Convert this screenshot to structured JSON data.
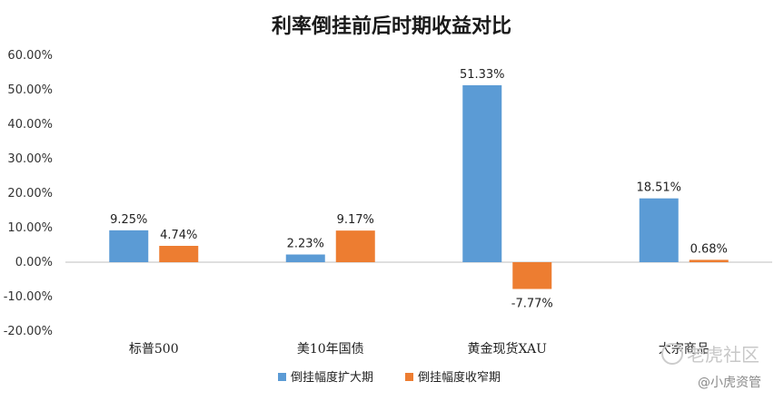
{
  "chart_data": {
    "type": "bar",
    "title": "利率倒挂前后时期收益对比",
    "categories": [
      "标普500",
      "美10年国债",
      "黄金现货XAU",
      "大宗商品"
    ],
    "series": [
      {
        "name": "倒挂幅度扩大期",
        "values": [
          9.25,
          2.23,
          51.33,
          18.51
        ],
        "labels": [
          "9.25%",
          "2.23%",
          "51.33%",
          "18.51%"
        ],
        "color": "#5B9BD5"
      },
      {
        "name": "倒挂幅度收窄期",
        "values": [
          4.74,
          9.17,
          -7.77,
          0.68
        ],
        "labels": [
          "4.74%",
          "9.17%",
          "-7.77%",
          "0.68%"
        ],
        "color": "#ED7D31"
      }
    ],
    "ylim": [
      -20,
      60
    ],
    "yticks": [
      "60.00%",
      "50.00%",
      "40.00%",
      "30.00%",
      "20.00%",
      "10.00%",
      "0.00%",
      "-10.00%",
      "-20.00%"
    ],
    "ytick_values": [
      60,
      50,
      40,
      30,
      20,
      10,
      0,
      -10,
      -20
    ],
    "grid": false,
    "legend_position": "bottom"
  },
  "watermark": {
    "brand": "老虎社区",
    "account": "@小虎资管"
  }
}
